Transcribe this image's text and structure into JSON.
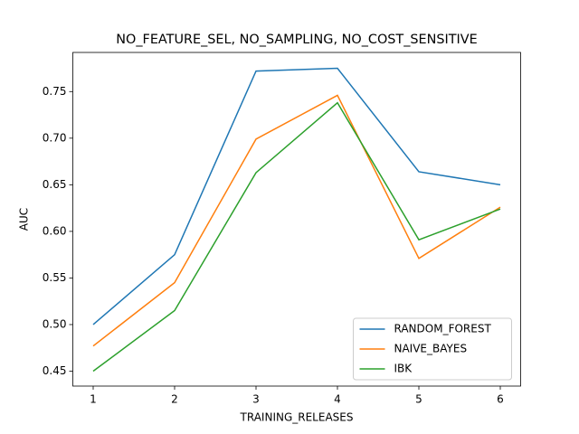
{
  "chart_data": {
    "type": "line",
    "title": "NO_FEATURE_SEL, NO_SAMPLING, NO_COST_SENSITIVE",
    "x_label": "TRAINING_RELEASES",
    "y_label": "AUC",
    "x": [
      1,
      2,
      3,
      4,
      5,
      6
    ],
    "series": [
      {
        "name": "RANDOM_FOREST",
        "color": "#1f77b4",
        "values": [
          0.5,
          0.575,
          0.772,
          0.775,
          0.664,
          0.65
        ]
      },
      {
        "name": "NAIVE_BAYES",
        "color": "#ff7f0e",
        "values": [
          0.477,
          0.545,
          0.699,
          0.746,
          0.571,
          0.626
        ]
      },
      {
        "name": "IBK",
        "color": "#2ca02c",
        "values": [
          0.45,
          0.515,
          0.663,
          0.738,
          0.591,
          0.624
        ]
      }
    ],
    "xlim": [
      0.75,
      6.25
    ],
    "xticks": [
      1,
      2,
      3,
      4,
      5,
      6
    ],
    "ylim": [
      0.434,
      0.792
    ],
    "yticks": [
      0.45,
      {
        "value": 0.5,
        "label": "0.50"
      },
      0.55,
      {
        "value": 0.6,
        "label": "0.60"
      },
      0.65,
      {
        "value": 0.7,
        "label": "0.70"
      },
      0.75
    ],
    "legend": "lower right",
    "grid": false
  }
}
